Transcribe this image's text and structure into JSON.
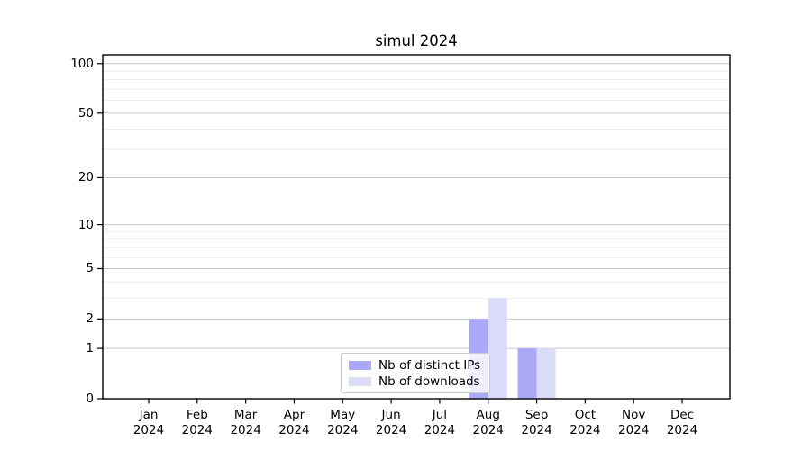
{
  "chart_data": {
    "type": "bar",
    "title": "simul 2024",
    "categories": [
      "Jan 2024",
      "Feb 2024",
      "Mar 2024",
      "Apr 2024",
      "May 2024",
      "Jun 2024",
      "Jul 2024",
      "Aug 2024",
      "Sep 2024",
      "Oct 2024",
      "Nov 2024",
      "Dec 2024"
    ],
    "series": [
      {
        "name": "Nb of distinct IPs",
        "color": "#a9a9f6",
        "values": [
          0,
          0,
          0,
          0,
          0,
          0,
          0,
          2,
          1,
          0,
          0,
          0
        ]
      },
      {
        "name": "Nb of downloads",
        "color": "#dbdbfa",
        "values": [
          0,
          0,
          0,
          0,
          0,
          0,
          0,
          3,
          1,
          0,
          0,
          0
        ]
      }
    ],
    "xlabel": "",
    "ylabel": "",
    "yscale": "log1p",
    "ylim": [
      0,
      113
    ],
    "yticks": [
      100,
      50,
      20,
      10,
      5,
      2,
      1,
      0
    ],
    "minor_yticks": [
      3,
      4,
      6,
      7,
      8,
      9,
      30,
      40,
      60,
      70,
      80,
      90
    ],
    "grid": "horizontal",
    "legend_position": "lower-center",
    "colors": {
      "major_grid": "#c6c6c6",
      "minor_grid": "#eaeaea",
      "spine": "#000000",
      "background": "#ffffff"
    }
  }
}
